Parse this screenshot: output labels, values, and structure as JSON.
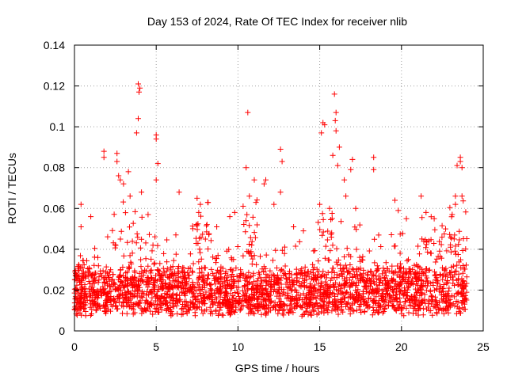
{
  "chart_data": {
    "type": "scatter",
    "title": "Day 153 of 2024, Rate Of TEC Index for receiver nlib",
    "xlabel": "GPS time / hours",
    "ylabel": "ROTI / TECUs",
    "xlim": [
      0,
      25
    ],
    "ylim": [
      0,
      0.14
    ],
    "xticks": [
      "0",
      "5",
      "10",
      "15",
      "20",
      "25"
    ],
    "yticks": [
      "0",
      "0.02",
      "0.04",
      "0.06",
      "0.08",
      "0.1",
      "0.12",
      "0.14"
    ],
    "grid": true,
    "marker": "+",
    "colors": {
      "points": "#ff0000",
      "grid": "#a0a0a0",
      "frame": "#000000"
    },
    "data_extent_hours": [
      0,
      24
    ],
    "baseline_band": {
      "typical_low": 0.01,
      "typical_high": 0.03
    },
    "outliers": [
      {
        "x": 0.4,
        "y": 0.062
      },
      {
        "x": 0.4,
        "y": 0.051
      },
      {
        "x": 1.0,
        "y": 0.056
      },
      {
        "x": 1.8,
        "y": 0.085
      },
      {
        "x": 1.8,
        "y": 0.088
      },
      {
        "x": 2.6,
        "y": 0.087
      },
      {
        "x": 2.6,
        "y": 0.083
      },
      {
        "x": 2.7,
        "y": 0.076
      },
      {
        "x": 2.8,
        "y": 0.074
      },
      {
        "x": 3.0,
        "y": 0.072
      },
      {
        "x": 3.3,
        "y": 0.078
      },
      {
        "x": 3.4,
        "y": 0.066
      },
      {
        "x": 3.9,
        "y": 0.121
      },
      {
        "x": 4.0,
        "y": 0.119
      },
      {
        "x": 3.95,
        "y": 0.117
      },
      {
        "x": 3.9,
        "y": 0.104
      },
      {
        "x": 3.8,
        "y": 0.097
      },
      {
        "x": 4.1,
        "y": 0.068
      },
      {
        "x": 4.5,
        "y": 0.057
      },
      {
        "x": 5.0,
        "y": 0.096
      },
      {
        "x": 5.0,
        "y": 0.094
      },
      {
        "x": 5.1,
        "y": 0.082
      },
      {
        "x": 5.0,
        "y": 0.074
      },
      {
        "x": 6.4,
        "y": 0.068
      },
      {
        "x": 6.2,
        "y": 0.047
      },
      {
        "x": 7.5,
        "y": 0.065
      },
      {
        "x": 7.7,
        "y": 0.062
      },
      {
        "x": 7.6,
        "y": 0.058
      },
      {
        "x": 8.7,
        "y": 0.051
      },
      {
        "x": 9.5,
        "y": 0.056
      },
      {
        "x": 9.8,
        "y": 0.058
      },
      {
        "x": 10.6,
        "y": 0.107
      },
      {
        "x": 10.5,
        "y": 0.08
      },
      {
        "x": 10.7,
        "y": 0.066
      },
      {
        "x": 11.0,
        "y": 0.074
      },
      {
        "x": 11.1,
        "y": 0.063
      },
      {
        "x": 11.6,
        "y": 0.072
      },
      {
        "x": 11.7,
        "y": 0.074
      },
      {
        "x": 12.2,
        "y": 0.062
      },
      {
        "x": 12.6,
        "y": 0.089
      },
      {
        "x": 12.7,
        "y": 0.083
      },
      {
        "x": 12.6,
        "y": 0.068
      },
      {
        "x": 13.4,
        "y": 0.051
      },
      {
        "x": 14.0,
        "y": 0.049
      },
      {
        "x": 15.0,
        "y": 0.062
      },
      {
        "x": 15.2,
        "y": 0.102
      },
      {
        "x": 15.3,
        "y": 0.101
      },
      {
        "x": 15.1,
        "y": 0.097
      },
      {
        "x": 15.6,
        "y": 0.06
      },
      {
        "x": 15.9,
        "y": 0.116
      },
      {
        "x": 16.0,
        "y": 0.107
      },
      {
        "x": 15.95,
        "y": 0.103
      },
      {
        "x": 16.0,
        "y": 0.098
      },
      {
        "x": 16.2,
        "y": 0.09
      },
      {
        "x": 15.8,
        "y": 0.086
      },
      {
        "x": 16.1,
        "y": 0.081
      },
      {
        "x": 16.5,
        "y": 0.074
      },
      {
        "x": 16.6,
        "y": 0.066
      },
      {
        "x": 16.9,
        "y": 0.079
      },
      {
        "x": 17.0,
        "y": 0.084
      },
      {
        "x": 17.2,
        "y": 0.06
      },
      {
        "x": 18.3,
        "y": 0.085
      },
      {
        "x": 18.3,
        "y": 0.079
      },
      {
        "x": 19.6,
        "y": 0.064
      },
      {
        "x": 19.8,
        "y": 0.059
      },
      {
        "x": 20.3,
        "y": 0.055
      },
      {
        "x": 21.2,
        "y": 0.066
      },
      {
        "x": 21.5,
        "y": 0.058
      },
      {
        "x": 22.0,
        "y": 0.055
      },
      {
        "x": 22.7,
        "y": 0.05
      },
      {
        "x": 23.1,
        "y": 0.057
      },
      {
        "x": 23.3,
        "y": 0.066
      },
      {
        "x": 23.3,
        "y": 0.062
      },
      {
        "x": 23.4,
        "y": 0.081
      },
      {
        "x": 23.6,
        "y": 0.083
      },
      {
        "x": 23.6,
        "y": 0.085
      },
      {
        "x": 23.7,
        "y": 0.066
      },
      {
        "x": 23.7,
        "y": 0.08
      }
    ]
  }
}
